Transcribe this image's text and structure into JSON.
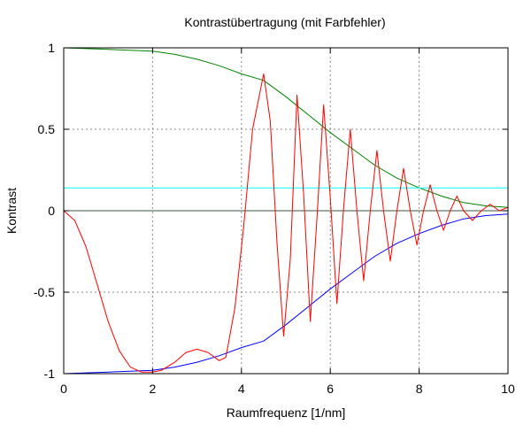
{
  "chart_data": {
    "type": "line",
    "title": "Kontrastübertragung (mit Farbfehler)",
    "xlabel": "Raumfrequenz [1/nm]",
    "ylabel": "Kontrast",
    "xlim": [
      0,
      10
    ],
    "ylim": [
      -1,
      1
    ],
    "x_ticks": [
      0,
      2,
      4,
      6,
      8,
      10
    ],
    "y_ticks": [
      -1,
      -0.5,
      0,
      0.5,
      1
    ],
    "x_tick_labels": [
      "0",
      "2",
      "4",
      "6",
      "8",
      "10"
    ],
    "y_tick_labels": [
      "-1",
      "-0.5",
      "0",
      "0.5",
      "1"
    ],
    "grid": true,
    "legend": false,
    "series": [
      {
        "color": "#008000",
        "style": "solid",
        "x": [
          0,
          1,
          2,
          2.5,
          3,
          3.5,
          4,
          4.5,
          5,
          5.5,
          6,
          6.5,
          7,
          7.5,
          8,
          8.5,
          9,
          9.5,
          10
        ],
        "y": [
          1.0,
          0.99,
          0.98,
          0.96,
          0.93,
          0.89,
          0.84,
          0.8,
          0.7,
          0.59,
          0.48,
          0.38,
          0.28,
          0.2,
          0.14,
          0.09,
          0.05,
          0.03,
          0.02
        ]
      },
      {
        "color": "#0000ff",
        "style": "solid",
        "x": [
          0,
          1,
          2,
          2.5,
          3,
          3.5,
          4,
          4.5,
          5,
          5.5,
          6,
          6.5,
          7,
          7.5,
          8,
          8.5,
          9,
          9.5,
          10
        ],
        "y": [
          -1.0,
          -0.99,
          -0.98,
          -0.96,
          -0.93,
          -0.89,
          -0.84,
          -0.8,
          -0.7,
          -0.59,
          -0.48,
          -0.38,
          -0.28,
          -0.2,
          -0.14,
          -0.09,
          -0.05,
          -0.03,
          -0.02
        ]
      },
      {
        "color": "#00ffff",
        "style": "solid",
        "x": [
          0,
          10
        ],
        "y": [
          0.14,
          0.14
        ]
      },
      {
        "color": "#ff0000",
        "style": "solid",
        "x": [
          0,
          0.25,
          0.5,
          0.75,
          1.0,
          1.25,
          1.5,
          1.75,
          2.0,
          2.2,
          2.5,
          2.75,
          3.0,
          3.25,
          3.5,
          3.65,
          3.85,
          4.05,
          4.25,
          4.5,
          4.65,
          4.8,
          4.95,
          5.1,
          5.25,
          5.4,
          5.55,
          5.7,
          5.85,
          6.0,
          6.15,
          6.3,
          6.45,
          6.6,
          6.75,
          6.9,
          7.05,
          7.2,
          7.35,
          7.5,
          7.65,
          7.8,
          7.95,
          8.1,
          8.25,
          8.4,
          8.55,
          8.7,
          8.85,
          9.0,
          9.2,
          9.4,
          9.6,
          9.8,
          10.0
        ],
        "y": [
          0.0,
          -0.06,
          -0.22,
          -0.45,
          -0.68,
          -0.86,
          -0.96,
          -0.99,
          -0.99,
          -0.98,
          -0.93,
          -0.87,
          -0.85,
          -0.87,
          -0.92,
          -0.9,
          -0.6,
          -0.1,
          0.5,
          0.84,
          0.55,
          -0.2,
          -0.77,
          -0.3,
          0.71,
          0.1,
          -0.68,
          -0.05,
          0.65,
          0.08,
          -0.57,
          0.02,
          0.5,
          0.0,
          -0.43,
          0.0,
          0.37,
          0.0,
          -0.31,
          0.0,
          0.26,
          0.0,
          -0.21,
          0.0,
          0.16,
          0.0,
          -0.12,
          0.0,
          0.09,
          0.0,
          -0.06,
          0.0,
          0.04,
          0.0,
          0.02
        ]
      }
    ]
  }
}
